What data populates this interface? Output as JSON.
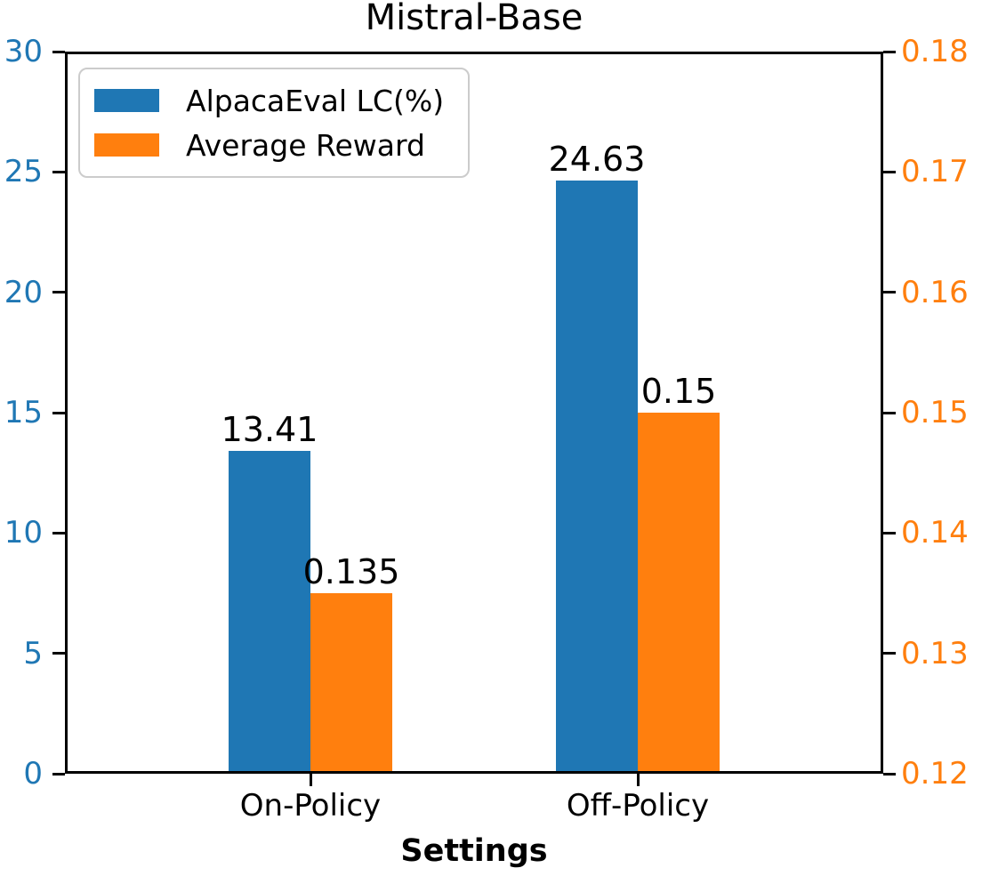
{
  "chart_data": {
    "type": "bar",
    "title": "Mistral-Base",
    "xlabel": "Settings",
    "categories": [
      "On-Policy",
      "Off-Policy"
    ],
    "series": [
      {
        "name": "AlpacaEval LC(%)",
        "axis": "left",
        "color": "#1f77b4",
        "values": [
          13.41,
          24.63
        ],
        "labels": [
          "13.41",
          "24.63"
        ]
      },
      {
        "name": "Average Reward",
        "axis": "right",
        "color": "#ff7f0e",
        "values": [
          0.135,
          0.15
        ],
        "labels": [
          "0.135",
          "0.15"
        ]
      }
    ],
    "left_axis": {
      "color": "#1f77b4",
      "ticks": [
        "0",
        "5",
        "10",
        "15",
        "20",
        "25",
        "30"
      ],
      "ylim": [
        0,
        30
      ]
    },
    "right_axis": {
      "color": "#ff7f0e",
      "ticks": [
        "0.12",
        "0.13",
        "0.14",
        "0.15",
        "0.16",
        "0.17",
        "0.18"
      ],
      "ylim": [
        0.12,
        0.18
      ]
    },
    "legend": {
      "position": "upper left",
      "entries": [
        "AlpacaEval LC(%)",
        "Average Reward"
      ]
    },
    "grid": false
  }
}
